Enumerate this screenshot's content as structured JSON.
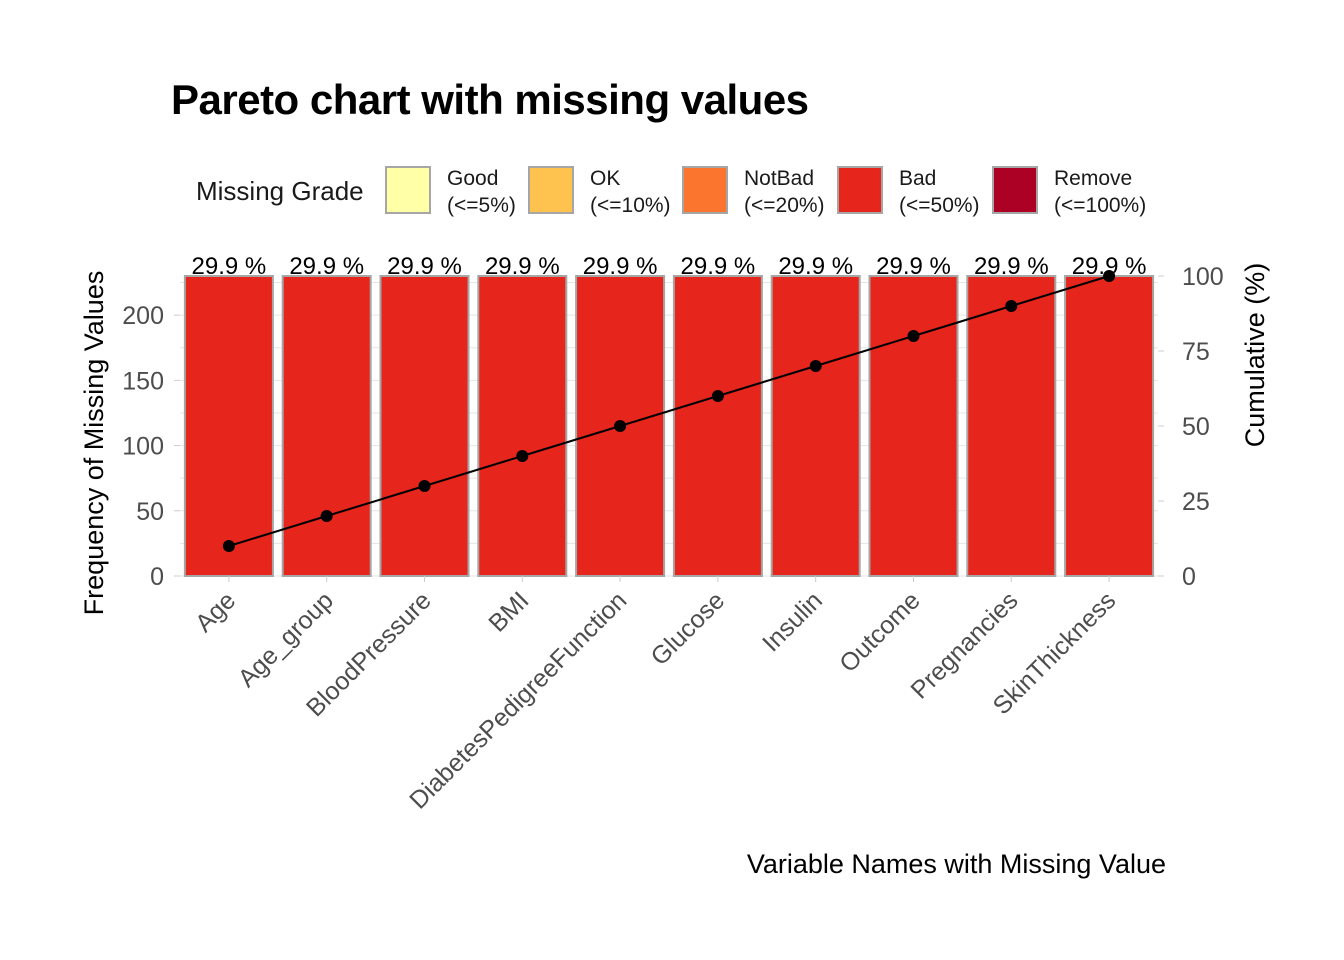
{
  "chart_data": {
    "type": "bar",
    "title": "Pareto chart with missing values",
    "xlabel": "Variable Names with Missing Value",
    "ylabel": "Frequency of Missing Values",
    "ylabel_right": "Cumulative (%)",
    "categories": [
      "Age",
      "Age_group",
      "BloodPressure",
      "BMI",
      "DiabetesPedigreeFunction",
      "Glucose",
      "Insulin",
      "Outcome",
      "Pregnancies",
      "SkinThickness"
    ],
    "values": [
      230,
      230,
      230,
      230,
      230,
      230,
      230,
      230,
      230,
      230
    ],
    "bar_labels": [
      "29.9 %",
      "29.9 %",
      "29.9 %",
      "29.9 %",
      "29.9 %",
      "29.9 %",
      "29.9 %",
      "29.9 %",
      "29.9 %",
      "29.9 %"
    ],
    "cumulative": [
      10,
      20,
      30,
      40,
      50,
      60,
      70,
      80,
      90,
      100
    ],
    "ylim": [
      0,
      230
    ],
    "y_ticks": [
      0,
      50,
      100,
      150,
      200
    ],
    "y_right_ticks": [
      0,
      25,
      50,
      75,
      100
    ],
    "y_right_lim": [
      0,
      100
    ],
    "grid": true,
    "bar_color": "#E6251C",
    "bar_border_color": "#A6A6A6",
    "line_color": "#000000",
    "legend": {
      "title": "Missing Grade",
      "placement": "top",
      "items": [
        {
          "name": "Good",
          "range": "(<=5%)",
          "color": "#FFFFA8"
        },
        {
          "name": "OK",
          "range": "(<=10%)",
          "color": "#FEC34F"
        },
        {
          "name": "NotBad",
          "range": "(<=20%)",
          "color": "#FC752F"
        },
        {
          "name": "Bad",
          "range": "(<=50%)",
          "color": "#E6251C"
        },
        {
          "name": "Remove",
          "range": "(<=100%)",
          "color": "#AC0024"
        }
      ]
    }
  }
}
